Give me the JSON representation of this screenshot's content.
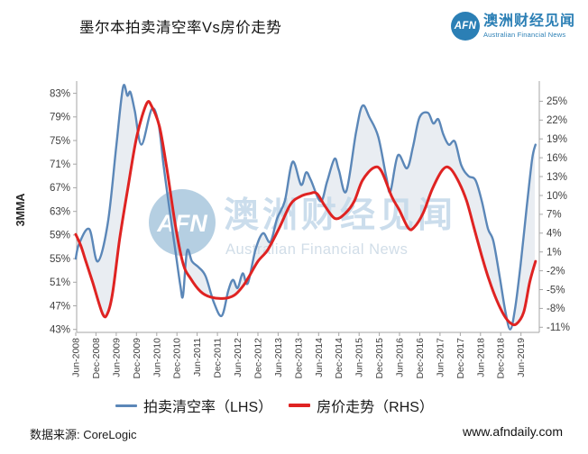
{
  "header": {
    "title": "墨尔本拍卖清空率Vs房价走势",
    "logo": {
      "abbr": "AFN",
      "name_zh": "澳洲财经见闻",
      "name_en": "Australian Financial News"
    }
  },
  "watermark": {
    "abbr": "AFN",
    "name_zh": "澳洲财经见闻",
    "name_en": "Australian Financial News"
  },
  "chart_data": {
    "type": "line",
    "title": "墨尔本拍卖清空率Vs房价走势",
    "x_unit": "months since Jun-2008",
    "x_tick_months": [
      0,
      6,
      12,
      18,
      24,
      30,
      36,
      42,
      48,
      54,
      60,
      66,
      72,
      78,
      84,
      90,
      96,
      102,
      108,
      114,
      120,
      126,
      132
    ],
    "x_tick_labels": [
      "Jun-2008",
      "Dec-2008",
      "Jun-2009",
      "Dec-2009",
      "Jun-2010",
      "Dec-2010",
      "Jun-2011",
      "Dec-2011",
      "Jun-2012",
      "Dec-2012",
      "Jun-2013",
      "Dec-2013",
      "Jun-2014",
      "Dec-2014",
      "Jun-2015",
      "Dec-2015",
      "Jun-2016",
      "Dec-2016",
      "Jun-2017",
      "Dec-2017",
      "Jun-2018",
      "Dec-2018",
      "Jun-2019"
    ],
    "left_axis": {
      "title": "3MMA",
      "min": 43,
      "max": 83,
      "tick_step": 4,
      "tick_labels": [
        "83%",
        "79%",
        "75%",
        "71%",
        "67%",
        "63%",
        "59%",
        "55%",
        "51%",
        "47%",
        "43%"
      ]
    },
    "right_axis": {
      "min": -11,
      "max": 25,
      "tick_step": 3,
      "tick_labels": [
        "25%",
        "22%",
        "19%",
        "16%",
        "13%",
        "10%",
        "7%",
        "4%",
        "1%",
        "-2%",
        "-5%",
        "-8%",
        "-11%"
      ]
    },
    "grid": false,
    "legend_position": "bottom",
    "fill_between_color": "#e9edf2",
    "axis_color": "#a6a6a6",
    "tick_text_color": "#3f3f3f",
    "series": [
      {
        "name": "拍卖清空率（LHS）",
        "axis": "left",
        "color": "#5b87b8",
        "width": 2.4,
        "points": [
          [
            0,
            55
          ],
          [
            1,
            57.5
          ],
          [
            4,
            60
          ],
          [
            6.5,
            54.5
          ],
          [
            9.5,
            61
          ],
          [
            12,
            74
          ],
          [
            14,
            84
          ],
          [
            15.3,
            82.6
          ],
          [
            16.2,
            83.2
          ],
          [
            17.5,
            80
          ],
          [
            19.5,
            74.3
          ],
          [
            22.5,
            80.3
          ],
          [
            24.5,
            78
          ],
          [
            26,
            71
          ],
          [
            27.5,
            64.5
          ],
          [
            29.5,
            56.5
          ],
          [
            31,
            50.5
          ],
          [
            31.8,
            48.7
          ],
          [
            33,
            56.3
          ],
          [
            34.5,
            54.5
          ],
          [
            36.5,
            53.5
          ],
          [
            38.5,
            52
          ],
          [
            41,
            47.5
          ],
          [
            43.3,
            45.3
          ],
          [
            45.2,
            49.5
          ],
          [
            46.6,
            51.4
          ],
          [
            48,
            50
          ],
          [
            49.5,
            52.5
          ],
          [
            51,
            50.8
          ],
          [
            53.3,
            56.5
          ],
          [
            55.5,
            59.3
          ],
          [
            57.7,
            57.8
          ],
          [
            59.7,
            61.8
          ],
          [
            62,
            64.8
          ],
          [
            64.3,
            71.4
          ],
          [
            66.8,
            67.5
          ],
          [
            68.3,
            69.6
          ],
          [
            69.7,
            68.3
          ],
          [
            72.6,
            64.7
          ],
          [
            74.5,
            68
          ],
          [
            76.7,
            71.9
          ],
          [
            78,
            70
          ],
          [
            80.2,
            66.4
          ],
          [
            83.1,
            76.4
          ],
          [
            85,
            80.9
          ],
          [
            87.1,
            78.9
          ],
          [
            89.7,
            75.6
          ],
          [
            92.1,
            68.7
          ],
          [
            93.3,
            66.4
          ],
          [
            95.5,
            72.5
          ],
          [
            98.2,
            70.3
          ],
          [
            100,
            74
          ],
          [
            101.9,
            78.9
          ],
          [
            104.4,
            79.7
          ],
          [
            106,
            77.9
          ],
          [
            107.5,
            78.6
          ],
          [
            109,
            76
          ],
          [
            110.6,
            74.3
          ],
          [
            112.4,
            74.8
          ],
          [
            114.3,
            70.8
          ],
          [
            116.4,
            69
          ],
          [
            118.5,
            68.3
          ],
          [
            120.4,
            64.7
          ],
          [
            122.2,
            60.1
          ],
          [
            123.8,
            58
          ],
          [
            125.7,
            51.9
          ],
          [
            127.3,
            46.3
          ],
          [
            128.8,
            43
          ],
          [
            130.2,
            46.3
          ],
          [
            131.9,
            54
          ],
          [
            133.7,
            63.7
          ],
          [
            135.3,
            71.8
          ],
          [
            136.3,
            74.3
          ]
        ]
      },
      {
        "name": "房价走势（RHS）",
        "axis": "right",
        "color": "#df2322",
        "width": 3,
        "points": [
          [
            0,
            3.8
          ],
          [
            1.5,
            2
          ],
          [
            3,
            -0.5
          ],
          [
            5,
            -3.8
          ],
          [
            8,
            -8.9
          ],
          [
            9.5,
            -8.7
          ],
          [
            11,
            -5.3
          ],
          [
            13,
            3
          ],
          [
            15.4,
            11
          ],
          [
            18.1,
            19.4
          ],
          [
            21,
            24.6
          ],
          [
            22.5,
            24.2
          ],
          [
            24.8,
            21
          ],
          [
            27,
            14.3
          ],
          [
            29.7,
            4.7
          ],
          [
            31.9,
            -1
          ],
          [
            34,
            -3.2
          ],
          [
            37,
            -5.3
          ],
          [
            40,
            -6.2
          ],
          [
            44,
            -6.4
          ],
          [
            47,
            -5.9
          ],
          [
            49.5,
            -4.5
          ],
          [
            51.4,
            -2.9
          ],
          [
            54,
            -0.5
          ],
          [
            57,
            1.4
          ],
          [
            60.5,
            5
          ],
          [
            63.7,
            8.6
          ],
          [
            66.5,
            9.8
          ],
          [
            69.3,
            10.3
          ],
          [
            71.5,
            10.3
          ],
          [
            74,
            8.2
          ],
          [
            77,
            6.3
          ],
          [
            80,
            7.2
          ],
          [
            82.6,
            9.1
          ],
          [
            85,
            12.4
          ],
          [
            88.3,
            14.4
          ],
          [
            90.6,
            13.9
          ],
          [
            93.7,
            9.8
          ],
          [
            95.9,
            7.7
          ],
          [
            98.6,
            4.8
          ],
          [
            100.3,
            4.9
          ],
          [
            103,
            7.2
          ],
          [
            105.7,
            11
          ],
          [
            108.8,
            14.1
          ],
          [
            111,
            14.3
          ],
          [
            113.7,
            12
          ],
          [
            115.9,
            9.1
          ],
          [
            118.1,
            4.8
          ],
          [
            120.3,
            0.5
          ],
          [
            122.5,
            -3.4
          ],
          [
            124.8,
            -6.7
          ],
          [
            127,
            -9.1
          ],
          [
            128.8,
            -10.3
          ],
          [
            130.6,
            -10.5
          ],
          [
            132.8,
            -8.6
          ],
          [
            134.6,
            -3.8
          ],
          [
            136.3,
            -0.5
          ]
        ]
      }
    ]
  },
  "legend": {
    "items": [
      {
        "label": "拍卖清空率（LHS）",
        "color": "#5b87b8"
      },
      {
        "label": "房价走势（RHS）",
        "color": "#df2322"
      }
    ]
  },
  "footer": {
    "source": "数据来源: CoreLogic",
    "website": "www.afndaily.com"
  }
}
